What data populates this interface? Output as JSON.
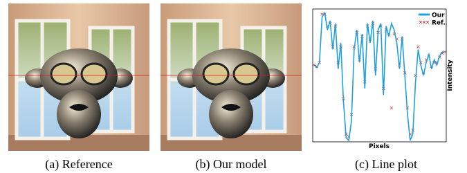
{
  "panels": [
    {
      "caption": "(a) Reference"
    },
    {
      "caption": "(b) Our model"
    },
    {
      "caption": "(c) Line plot"
    }
  ],
  "chart_data": {
    "type": "line",
    "xlabel": "Pixels",
    "ylabel": "Intensity",
    "legend": "upper right",
    "grid": false,
    "x": [
      0,
      2,
      4,
      6,
      8,
      10,
      12,
      14,
      16,
      18,
      20,
      22,
      24,
      26,
      28,
      30,
      32,
      34,
      36,
      38,
      40,
      42,
      44,
      46,
      48,
      50,
      52,
      54,
      56,
      58,
      60,
      62,
      64,
      66,
      68,
      70,
      72,
      74,
      76,
      78,
      80,
      82,
      84,
      86,
      88,
      90,
      92,
      94,
      96,
      98
    ],
    "xlim": [
      0,
      98
    ],
    "ylim": [
      0,
      1
    ],
    "series": [
      {
        "name": "Our",
        "color": "#1ea0e0",
        "marker": "line",
        "values": [
          0.58,
          0.56,
          0.6,
          0.95,
          0.98,
          0.85,
          0.92,
          0.7,
          0.9,
          0.55,
          0.75,
          0.3,
          0.02,
          0.0,
          0.15,
          0.7,
          0.85,
          0.6,
          0.82,
          0.4,
          0.9,
          0.75,
          0.92,
          0.5,
          0.85,
          0.9,
          0.35,
          0.88,
          0.8,
          0.9,
          0.85,
          0.75,
          0.55,
          0.8,
          0.5,
          0.2,
          0.0,
          0.05,
          0.45,
          0.7,
          0.58,
          0.5,
          0.6,
          0.66,
          0.55,
          0.62,
          0.58,
          0.65,
          0.68,
          0.68
        ]
      },
      {
        "name": "Ref.",
        "color": "#e03030",
        "marker": "x",
        "values": [
          0.58,
          0.57,
          0.6,
          0.97,
          0.97,
          0.88,
          0.9,
          0.72,
          0.88,
          0.6,
          0.72,
          0.32,
          0.05,
          0.03,
          0.2,
          0.72,
          0.83,
          0.62,
          0.8,
          0.45,
          0.88,
          0.78,
          0.9,
          0.55,
          0.83,
          0.88,
          0.4,
          0.85,
          0.82,
          0.25,
          0.82,
          0.78,
          0.58,
          0.78,
          0.52,
          0.25,
          0.05,
          0.08,
          0.5,
          0.72,
          0.6,
          0.52,
          0.62,
          0.65,
          0.57,
          0.6,
          0.6,
          0.64,
          0.67,
          0.68
        ]
      }
    ]
  }
}
